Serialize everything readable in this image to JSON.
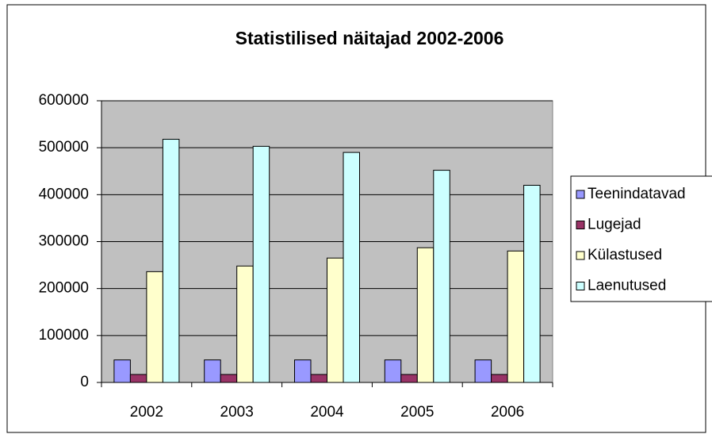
{
  "chart_data": {
    "type": "bar",
    "title": "Statistilised näitajad 2002-2006",
    "categories": [
      "2002",
      "2003",
      "2004",
      "2005",
      "2006"
    ],
    "series": [
      {
        "name": "Teenindatavad",
        "color": "#9999ff",
        "values": [
          48000,
          48000,
          48000,
          48000,
          48000
        ]
      },
      {
        "name": "Lugejad",
        "color": "#993366",
        "values": [
          17000,
          17000,
          17000,
          17000,
          17000
        ]
      },
      {
        "name": "Külastused",
        "color": "#ffffcc",
        "values": [
          236000,
          248000,
          265000,
          287000,
          280000
        ]
      },
      {
        "name": "Laenutused",
        "color": "#ccffff",
        "values": [
          518000,
          503000,
          490000,
          452000,
          420000
        ]
      }
    ],
    "ylim": [
      0,
      600000
    ],
    "yticks": [
      0,
      100000,
      200000,
      300000,
      400000,
      500000,
      600000
    ],
    "grid": true,
    "legend": "right",
    "plot_background": "#c0c0c0"
  }
}
